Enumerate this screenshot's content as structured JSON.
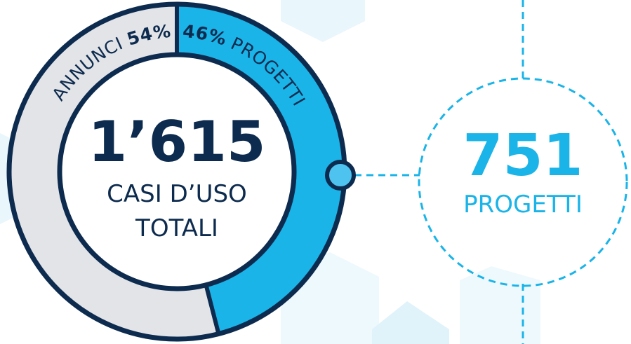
{
  "chart_data": {
    "type": "donut",
    "categories": [
      "ANNUNCI",
      "PROGETTI"
    ],
    "values": [
      54,
      46
    ],
    "value_labels": [
      "54%",
      "46%"
    ],
    "colors": [
      "#e3e4e8",
      "#1ab4e8"
    ],
    "total": {
      "value": 1615,
      "label": "1’615"
    },
    "center_text": [
      "CASI D’USO",
      "TOTALI"
    ],
    "callout": {
      "value": 751,
      "label": "PROGETTI"
    }
  }
}
